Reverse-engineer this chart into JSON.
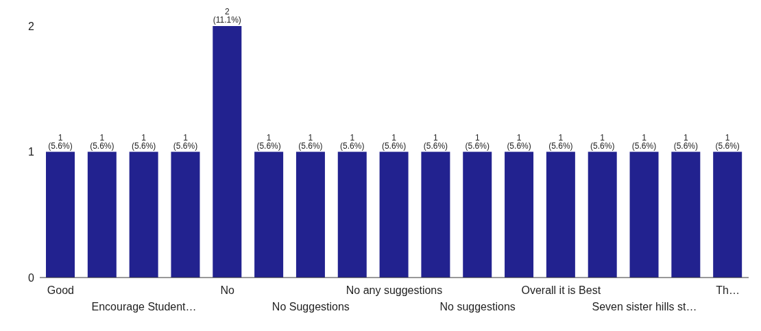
{
  "chart_data": {
    "type": "bar",
    "categories": [
      "Good",
      null,
      "Encourage Student…",
      null,
      "No",
      null,
      "No Suggestions",
      null,
      "No any suggestions",
      null,
      "No suggestions",
      null,
      "Overall it is Best",
      null,
      "Seven sister hills st…",
      null,
      "Th…"
    ],
    "values": [
      1,
      1,
      1,
      1,
      2,
      1,
      1,
      1,
      1,
      1,
      1,
      1,
      1,
      1,
      1,
      1,
      1
    ],
    "value_labels": [
      "1 (5.6%)",
      "1 (5.6%)",
      "1 (5.6%)",
      "1 (5.6%)",
      "2 (11.1%)",
      "1 (5.6%)",
      "1 (5.6%)",
      "1 (5.6%)",
      "1 (5.6%)",
      "1 (5.6%)",
      "1 (5.6%)",
      "1 (5.6%)",
      "1 (5.6%)",
      "1 (5.6%)",
      "1 (5.6%)",
      "1 (5.6%)",
      "1 (5.6%)"
    ],
    "color": "#22228f",
    "ylim": [
      0,
      2
    ],
    "yticks": [
      0,
      1,
      2
    ],
    "grid": false
  }
}
